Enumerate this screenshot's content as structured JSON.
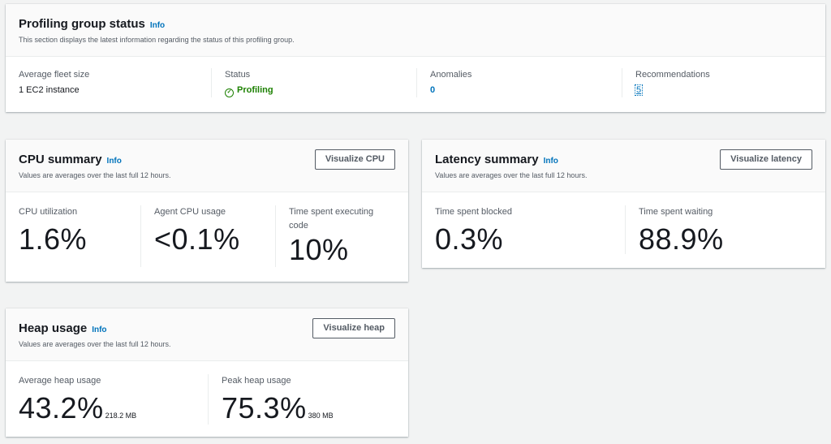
{
  "status": {
    "title": "Profiling group status",
    "info": "Info",
    "desc": "This section displays the latest information regarding the status of this profiling group.",
    "items": [
      {
        "label": "Average fleet size",
        "value": "1 EC2 instance"
      },
      {
        "label": "Status",
        "value": "Profiling",
        "icon": "check-circle-icon",
        "color": "#1d8102"
      },
      {
        "label": "Anomalies",
        "value": "0"
      },
      {
        "label": "Recommendations",
        "value": "5"
      }
    ]
  },
  "cpu": {
    "title": "CPU summary",
    "info": "Info",
    "desc": "Values are averages over the last full 12 hours.",
    "button": "Visualize CPU",
    "items": [
      {
        "label": "CPU utilization",
        "value": "1.6%"
      },
      {
        "label": "Agent CPU usage",
        "value": "<0.1%"
      },
      {
        "label": "Time spent executing code",
        "value": "10%"
      }
    ]
  },
  "latency": {
    "title": "Latency summary",
    "info": "Info",
    "desc": "Values are averages over the last full 12 hours.",
    "button": "Visualize latency",
    "items": [
      {
        "label": "Time spent blocked",
        "value": "0.3%"
      },
      {
        "label": "Time spent waiting",
        "value": "88.9%"
      }
    ]
  },
  "heap": {
    "title": "Heap usage",
    "info": "Info",
    "desc": "Values are averages over the last full 12 hours.",
    "button": "Visualize heap",
    "items": [
      {
        "label": "Average heap usage",
        "value": "43.2%",
        "unit": "218.2 MB"
      },
      {
        "label": "Peak heap usage",
        "value": "75.3%",
        "unit": "380 MB"
      }
    ]
  }
}
